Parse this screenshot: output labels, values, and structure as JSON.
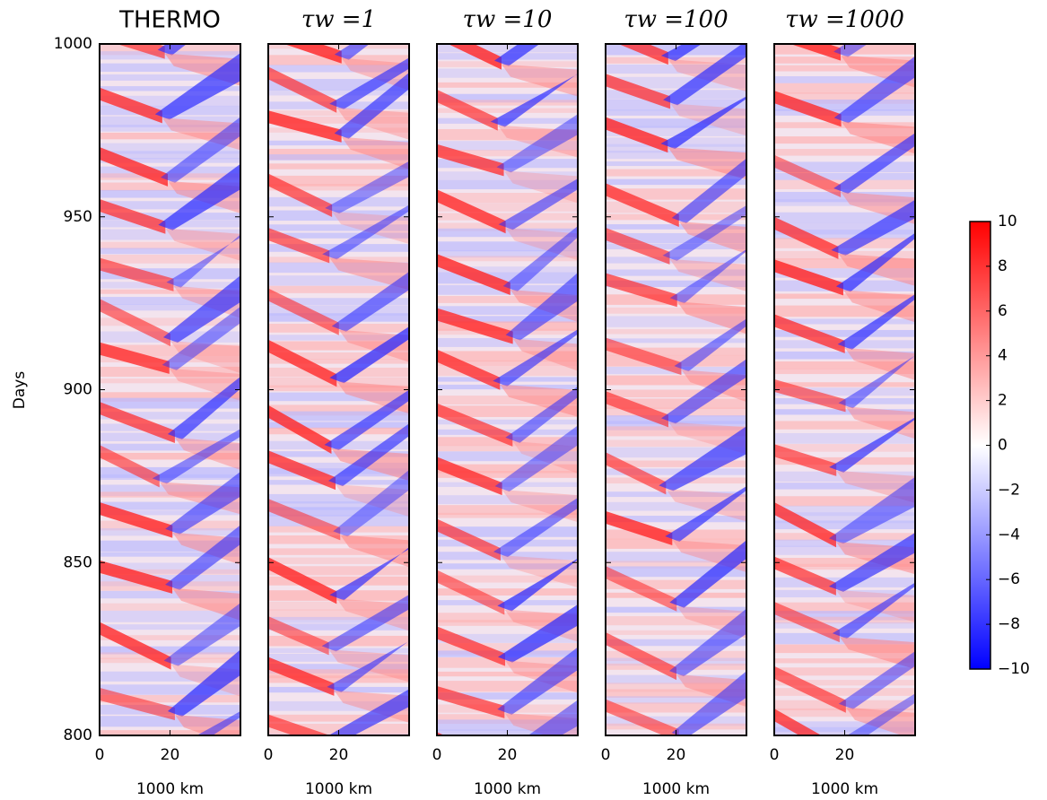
{
  "chart_data": {
    "type": "heatmap",
    "ylabel": "Days",
    "ylim": [
      800,
      1000
    ],
    "yticks": [
      800,
      850,
      900,
      950,
      1000
    ],
    "colorbar": {
      "clim": [
        -10,
        10
      ],
      "colors": [
        "#0000ff",
        "#ffffff",
        "#ff0000"
      ],
      "ticks": [
        {
          "value": -10,
          "label": "−10"
        },
        {
          "value": -8,
          "label": "−8"
        },
        {
          "value": -6,
          "label": "−6"
        },
        {
          "value": -4,
          "label": "−4"
        },
        {
          "value": -2,
          "label": "−2"
        },
        0,
        2,
        4,
        6,
        8,
        10
      ]
    },
    "panels": [
      {
        "title": "THERMO",
        "xlabel": "1000 km",
        "xlim": [
          0,
          40
        ],
        "xticks": [
          0,
          20
        ]
      },
      {
        "title": "τw =1",
        "xlabel": "1000 km",
        "xlim": [
          0,
          40
        ],
        "xticks": [
          0,
          20
        ]
      },
      {
        "title": "τw =10",
        "xlabel": "1000 km",
        "xlim": [
          0,
          40
        ],
        "xticks": [
          0,
          20
        ]
      },
      {
        "title": "τw =100",
        "xlabel": "1000 km",
        "xlim": [
          0,
          40
        ],
        "xticks": [
          0,
          20
        ]
      },
      {
        "title": "τw =1000",
        "xlabel": "1000 km",
        "xlim": [
          0,
          40
        ],
        "xticks": [
          0,
          20
        ]
      }
    ]
  }
}
